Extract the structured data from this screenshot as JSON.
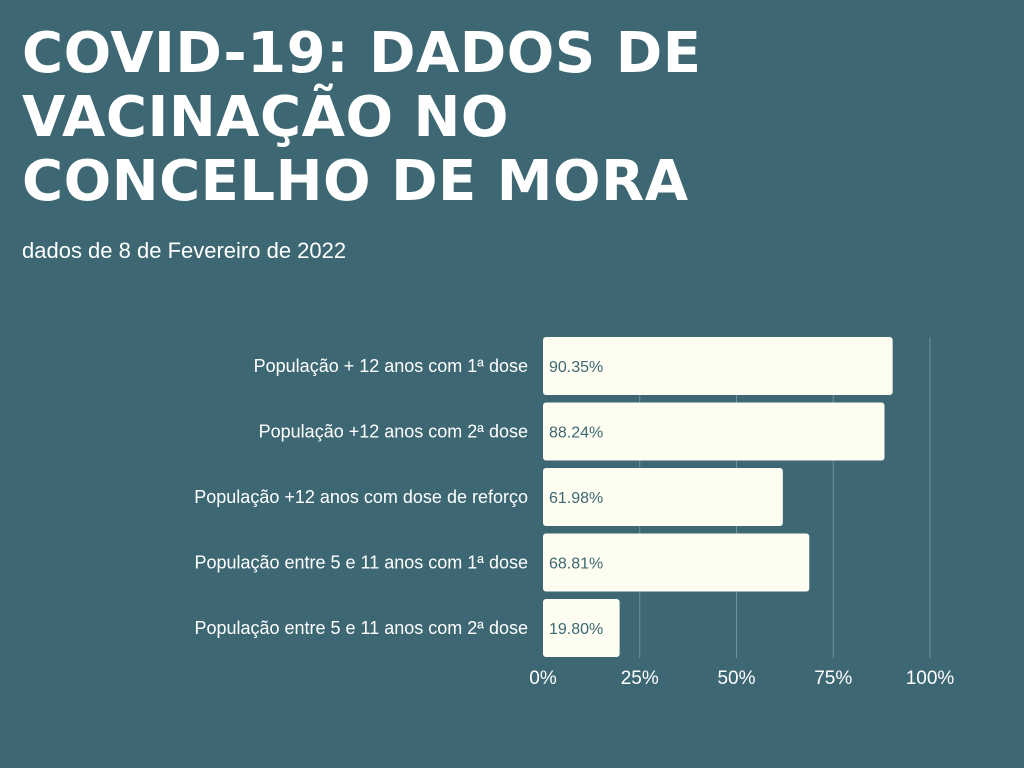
{
  "header": {
    "title": "COVID-19: DADOS DE VACINAÇÃO NO CONCELHO DE MORA",
    "subtitle": "dados de 8 de Fevereiro de 2022"
  },
  "colors": {
    "background": "#3d6873",
    "bar_fill": "#fdfdf1",
    "value_label": "#3d6873",
    "text": "#ffffff",
    "gridline": "#6f929a"
  },
  "chart_data": {
    "type": "bar",
    "orientation": "horizontal",
    "categories": [
      "População + 12 anos com 1ª dose",
      "População +12 anos com 2ª dose",
      "População +12 anos com dose de reforço",
      "População entre 5 e 11 anos com 1ª dose",
      "População entre 5 e 11 anos com 2ª dose"
    ],
    "values": [
      90.35,
      88.24,
      61.98,
      68.81,
      19.8
    ],
    "value_labels": [
      "90.35%",
      "88.24%",
      "61.98%",
      "68.81%",
      "19.80%"
    ],
    "xlim": [
      0,
      100
    ],
    "xticks": [
      0,
      25,
      50,
      75,
      100
    ],
    "xtick_labels": [
      "0%",
      "25%",
      "50%",
      "75%",
      "100%"
    ],
    "grid": true,
    "legend": false
  }
}
